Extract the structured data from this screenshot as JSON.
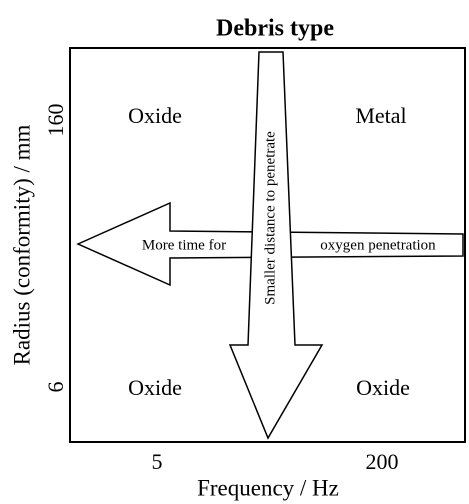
{
  "title": "Debris type",
  "y_axis": {
    "label": "Radius (conformity) / mm",
    "ticks": [
      "160",
      "6"
    ]
  },
  "x_axis": {
    "label": "Frequency / Hz",
    "ticks": [
      "5",
      "200"
    ]
  },
  "quadrants": {
    "top_left": "Oxide",
    "top_right": "Metal",
    "bottom_left": "Oxide",
    "bottom_right": "Oxide"
  },
  "arrows": {
    "horizontal": {
      "left_text": "More time for",
      "right_text": "oxygen penetration"
    },
    "vertical": {
      "text": "Smaller distance to penetrate"
    }
  }
}
